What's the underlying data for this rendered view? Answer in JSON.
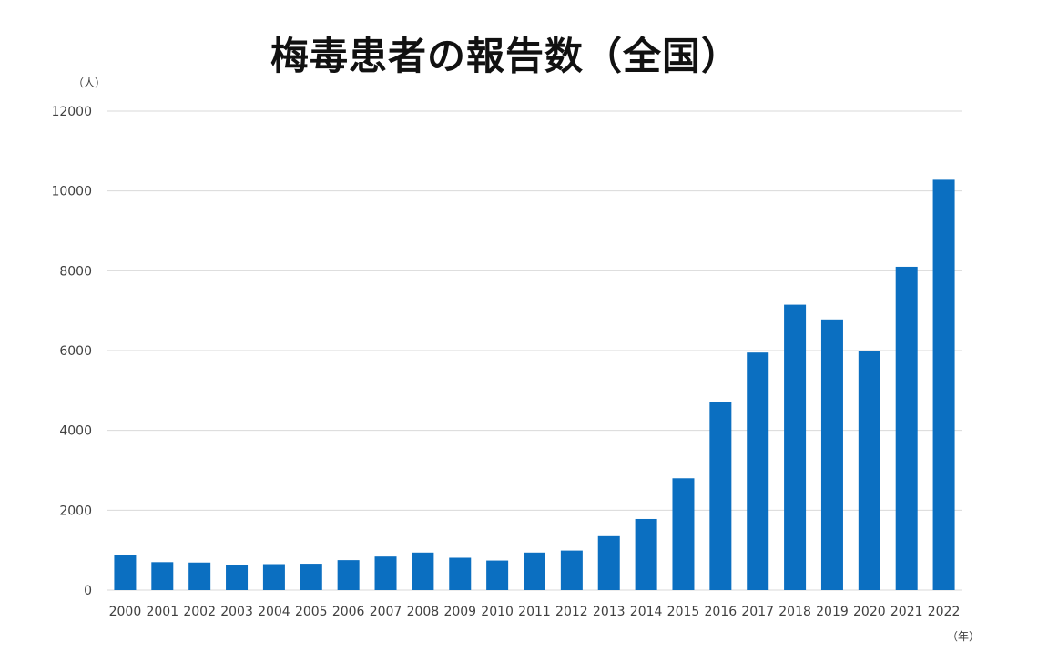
{
  "chart_data": {
    "type": "bar",
    "title": "梅毒患者の報告数（全国）",
    "ylabel": "（人）",
    "xlabel": "（年）",
    "ylim": [
      0,
      12000
    ],
    "yticks": [
      0,
      2000,
      4000,
      6000,
      8000,
      10000,
      12000
    ],
    "grid": true,
    "legend": "none",
    "categories": [
      "2000",
      "2001",
      "2002",
      "2003",
      "2004",
      "2005",
      "2006",
      "2007",
      "2008",
      "2009",
      "2010",
      "2011",
      "2012",
      "2013",
      "2014",
      "2015",
      "2016",
      "2017",
      "2018",
      "2019",
      "2020",
      "2021",
      "2022"
    ],
    "series": [
      {
        "values": [
          880,
          700,
          690,
          620,
          650,
          660,
          750,
          840,
          940,
          810,
          740,
          940,
          990,
          1350,
          1780,
          2800,
          4700,
          5950,
          7150,
          6780,
          6000,
          8100,
          10280
        ],
        "color": "#0b6fc1"
      }
    ]
  }
}
